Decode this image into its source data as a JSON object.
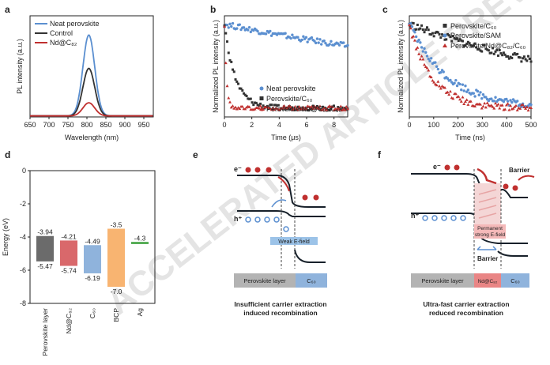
{
  "watermark": "ACCELERATED ARTICLE PREVIEW",
  "colors": {
    "blue": "#5b8fd0",
    "black": "#333333",
    "red": "#c0302f",
    "gray_bar": "#6b6b6b",
    "red_bar": "#d9686b",
    "blue_bar": "#8fb3dc",
    "orange_bar": "#f8b471",
    "green_bar": "#3aa03a"
  },
  "chart_data": [
    {
      "id": "a",
      "panel_label": "a",
      "type": "line",
      "xlabel": "Wavelength (nm)",
      "ylabel": "PL intensity (a.u.)",
      "xlim": [
        650,
        975
      ],
      "xticks": [
        "650",
        "700",
        "750",
        "800",
        "850",
        "900",
        "950"
      ],
      "series": [
        {
          "name": "Neat perovskite",
          "color": "#5b8fd0",
          "peak_x": 805,
          "peak_y": 0.8,
          "width": 22
        },
        {
          "name": "Control",
          "color": "#333333",
          "peak_x": 805,
          "peak_y": 0.47,
          "width": 22
        },
        {
          "name": "Nd@C₈₂",
          "color": "#c0302f",
          "peak_x": 805,
          "peak_y": 0.13,
          "width": 22
        }
      ]
    },
    {
      "id": "b",
      "panel_label": "b",
      "type": "scatter",
      "xlabel": "Time (μs)",
      "ylabel": "Normalized PL intensity (a.u.)",
      "xlim": [
        0,
        9
      ],
      "xticks": [
        "0",
        "2",
        "4",
        "6",
        "8"
      ],
      "series": [
        {
          "name": "Neat perovskite",
          "color": "#5b8fd0",
          "tau": 30,
          "amp": 1.0
        },
        {
          "name": "Perovskite/C₆₀",
          "color": "#333333",
          "tau": 0.8,
          "amp": 1.0
        },
        {
          "name": "Perovskite/Nd@C₈₂/C₆₀",
          "color": "#c0302f",
          "tau": 0.15,
          "amp": 1.0
        }
      ]
    },
    {
      "id": "c",
      "panel_label": "c",
      "type": "scatter",
      "xlabel": "Time (ns)",
      "ylabel": "Normalized PL intensity (a.u.)",
      "xlim": [
        0,
        500
      ],
      "xticks": [
        "0",
        "100",
        "200",
        "300",
        "400",
        "500"
      ],
      "series": [
        {
          "name": "Perovskite/C₆₀",
          "color": "#333333",
          "tau": 900,
          "amp": 1.0
        },
        {
          "name": "Perovskite/SAM",
          "color": "#5b8fd0",
          "tau": 160,
          "amp": 1.0
        },
        {
          "name": "Perovskite/Nd@C₈₂/C₆₀",
          "color": "#c0302f",
          "tau": 95,
          "amp": 1.0
        }
      ]
    },
    {
      "id": "d",
      "panel_label": "d",
      "type": "bar",
      "ylabel": "Energy (eV)",
      "ylim": [
        -8,
        0
      ],
      "yticks": [
        "0",
        "-2",
        "-4",
        "-6",
        "-8"
      ],
      "categories": [
        "Perovskite layer",
        "Nd@C₈₂",
        "C₆₀",
        "BCP",
        "Ag"
      ],
      "top_values": [
        -3.94,
        -4.21,
        -4.49,
        -3.5,
        -4.3
      ],
      "bottom_values": [
        -5.47,
        -5.74,
        -6.19,
        -7.0,
        -4.3
      ],
      "top_labels": [
        "-3.94",
        "-4.21",
        "-4.49",
        "-3.5",
        "-4.3"
      ],
      "bottom_labels": [
        "-5.47",
        "-5.74",
        "-6.19",
        "-7.0",
        ""
      ]
    }
  ],
  "diagram_e": {
    "panel_label": "e",
    "electron": "e⁻",
    "hole": "h⁺",
    "field_label": "Weak E-field",
    "layer_left": "Perovskite layer",
    "layer_right": "C₆₀",
    "caption_line1": "Insufficient carrier extraction",
    "caption_line2": "induced recombination"
  },
  "diagram_f": {
    "panel_label": "f",
    "electron": "e⁻",
    "hole": "h⁺",
    "barrier_top": "Barrier",
    "field_label_1": "Permanent",
    "field_label_2": "strong E-field",
    "barrier_bottom": "Barrier",
    "layer_left": "Perovskite layer",
    "layer_mid": "Nd@C₈₂",
    "layer_right": "C₆₀",
    "caption_line1": "Ultra-fast carrier extraction",
    "caption_line2": "reduced recombination"
  }
}
